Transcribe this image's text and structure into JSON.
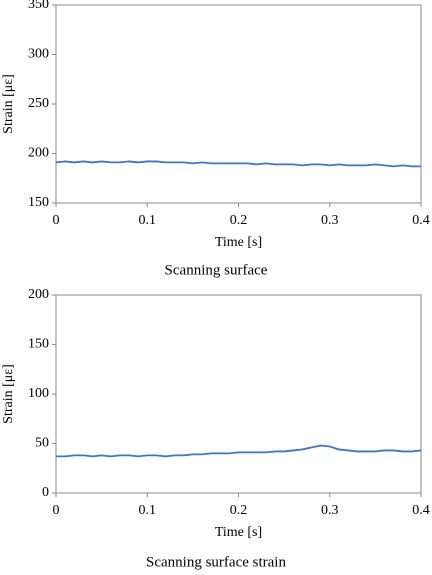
{
  "chart_data": [
    {
      "type": "line",
      "xlabel": "Time [s]",
      "ylabel": "Strain [με]",
      "caption": "Scanning surface",
      "xlim": [
        0,
        0.4
      ],
      "xticks": [
        0,
        0.1,
        0.2,
        0.3,
        0.4
      ],
      "ylim": [
        150,
        350
      ],
      "yticks": [
        150,
        200,
        250,
        300,
        350
      ],
      "x": [
        0,
        0.01,
        0.02,
        0.03,
        0.04,
        0.05,
        0.06,
        0.07,
        0.08,
        0.09,
        0.1,
        0.11,
        0.12,
        0.13,
        0.14,
        0.15,
        0.16,
        0.17,
        0.18,
        0.19,
        0.2,
        0.21,
        0.22,
        0.23,
        0.24,
        0.25,
        0.26,
        0.27,
        0.28,
        0.29,
        0.3,
        0.31,
        0.32,
        0.33,
        0.34,
        0.35,
        0.36,
        0.37,
        0.38,
        0.39,
        0.4
      ],
      "series": [
        {
          "color": "#4472c4",
          "values": [
            191,
            192,
            191,
            192,
            191,
            192,
            191,
            191,
            192,
            191,
            192,
            192,
            191,
            191,
            191,
            190,
            191,
            190,
            190,
            190,
            190,
            190,
            189,
            190,
            189,
            189,
            189,
            188,
            189,
            189,
            188,
            189,
            188,
            188,
            188,
            189,
            188,
            187,
            188,
            187,
            187
          ]
        }
      ]
    },
    {
      "type": "line",
      "xlabel": "Time [s]",
      "ylabel": "Strain [με]",
      "caption": "Scanning surface strain",
      "xlim": [
        0,
        0.4
      ],
      "xticks": [
        0,
        0.1,
        0.2,
        0.3,
        0.4
      ],
      "ylim": [
        0,
        200
      ],
      "yticks": [
        0,
        50,
        100,
        150,
        200
      ],
      "x": [
        0,
        0.01,
        0.02,
        0.03,
        0.04,
        0.05,
        0.06,
        0.07,
        0.08,
        0.09,
        0.1,
        0.11,
        0.12,
        0.13,
        0.14,
        0.15,
        0.16,
        0.17,
        0.18,
        0.19,
        0.2,
        0.21,
        0.22,
        0.23,
        0.24,
        0.25,
        0.26,
        0.27,
        0.28,
        0.29,
        0.3,
        0.31,
        0.32,
        0.33,
        0.34,
        0.35,
        0.36,
        0.37,
        0.38,
        0.39,
        0.4
      ],
      "series": [
        {
          "color": "#4472c4",
          "values": [
            37,
            37,
            38,
            38,
            37,
            38,
            37,
            38,
            38,
            37,
            38,
            38,
            37,
            38,
            38,
            39,
            39,
            40,
            40,
            40,
            41,
            41,
            41,
            41,
            42,
            42,
            43,
            44,
            46,
            48,
            47,
            44,
            43,
            42,
            42,
            42,
            43,
            43,
            42,
            42,
            43
          ]
        }
      ]
    }
  ]
}
